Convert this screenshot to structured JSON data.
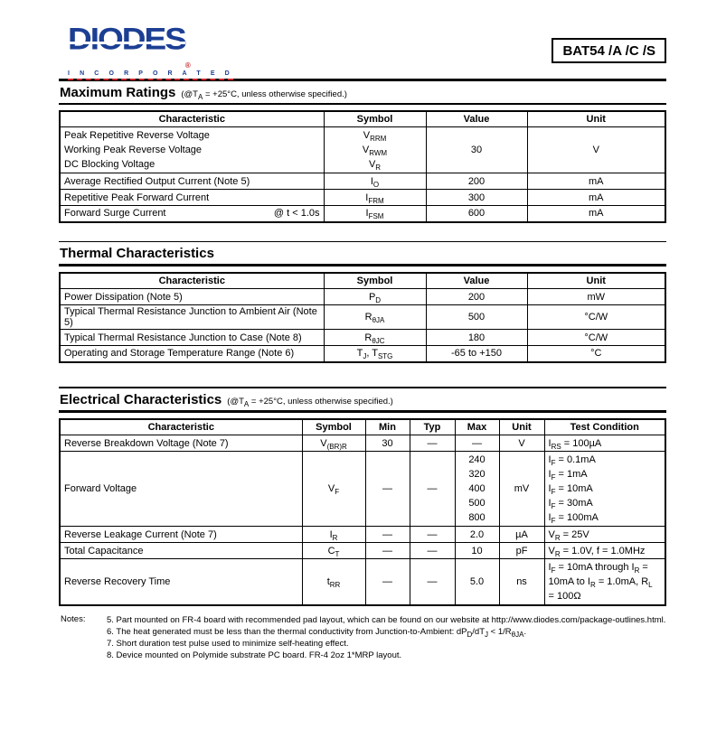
{
  "header": {
    "logo": {
      "brand": "DIODES",
      "reg": "®",
      "tagline": "I N C O R P O R A T E D"
    },
    "part_number": "BAT54 /A /C /S"
  },
  "colors": {
    "logo_blue": "#1c3f94",
    "logo_red": "#c9252b"
  },
  "sections": {
    "maximum_ratings": {
      "title": "Maximum Ratings",
      "subtitle": "(@T~A~ = +25°C, unless otherwise specified.)",
      "headers": [
        "Characteristic",
        "Symbol",
        "Value",
        "Unit"
      ],
      "voltage_group": {
        "characteristics": [
          "Peak Repetitive Reverse Voltage",
          "Working Peak Reverse Voltage",
          "DC Blocking Voltage"
        ],
        "symbols": [
          "V~RRM~",
          "V~RWM~",
          "V~R~"
        ],
        "value": "30",
        "unit": "V"
      },
      "rows": [
        {
          "characteristic": "Average Rectified Output Current (Note 5)",
          "condition": "",
          "symbol": "I~O~",
          "value": "200",
          "unit": "mA"
        },
        {
          "characteristic": "Repetitive Peak Forward Current",
          "condition": "",
          "symbol": "I~FRM~",
          "value": "300",
          "unit": "mA"
        },
        {
          "characteristic": "Forward Surge Current",
          "condition": "@ t < 1.0s",
          "symbol": "I~FSM~",
          "value": "600",
          "unit": "mA"
        }
      ]
    },
    "thermal": {
      "title": "Thermal Characteristics",
      "headers": [
        "Characteristic",
        "Symbol",
        "Value",
        "Unit"
      ],
      "rows": [
        {
          "characteristic": "Power Dissipation (Note 5)",
          "symbol": "P~D~",
          "value": "200",
          "unit": "mW"
        },
        {
          "characteristic": "Typical Thermal Resistance Junction to Ambient Air (Note 5)",
          "symbol": "R~θJA~",
          "value": "500",
          "unit": "°C/W"
        },
        {
          "characteristic": "Typical Thermal Resistance Junction to Case (Note 8)",
          "symbol": "R~θJC~",
          "value": "180",
          "unit": "°C/W"
        },
        {
          "characteristic": "Operating and Storage Temperature Range (Note 6)",
          "symbol": "T~J~, T~STG~",
          "value": "-65 to +150",
          "unit": "°C"
        }
      ]
    },
    "electrical": {
      "title": "Electrical Characteristics",
      "subtitle": "(@T~A~ = +25°C, unless otherwise specified.)",
      "headers": [
        "Characteristic",
        "Symbol",
        "Min",
        "Typ",
        "Max",
        "Unit",
        "Test Condition"
      ],
      "rows": {
        "breakdown": {
          "characteristic": "Reverse Breakdown Voltage (Note 7)",
          "symbol": "V~(BR)R~",
          "min": "30",
          "typ": "—",
          "max": "—",
          "unit": "V",
          "condition": "I~RS~ = 100µA"
        },
        "forward_voltage": {
          "characteristic": "Forward Voltage",
          "symbol": "V~F~",
          "min": "—",
          "typ": "—",
          "max_values": [
            "240",
            "320",
            "400",
            "500",
            "800"
          ],
          "unit": "mV",
          "conditions": [
            "I~F~ = 0.1mA",
            "I~F~ = 1mA",
            "I~F~ = 10mA",
            "I~F~ = 30mA",
            "I~F~ = 100mA"
          ]
        },
        "leakage": {
          "characteristic": "Reverse Leakage Current (Note 7)",
          "symbol": "I~R~",
          "min": "—",
          "typ": "—",
          "max": "2.0",
          "unit": "µA",
          "condition": "V~R~ = 25V"
        },
        "capacitance": {
          "characteristic": "Total Capacitance",
          "symbol": "C~T~",
          "min": "—",
          "typ": "—",
          "max": "10",
          "unit": "pF",
          "condition": "V~R~ = 1.0V, f = 1.0MHz"
        },
        "recovery": {
          "characteristic": "Reverse Recovery Time",
          "symbol": "t~RR~",
          "min": "—",
          "typ": "—",
          "max": "5.0",
          "unit": "ns",
          "condition": "I~F~ = 10mA through I~R~ = 10mA to I~R~ = 1.0mA, R~L~ = 100Ω"
        }
      }
    }
  },
  "notes": {
    "label": "Notes:",
    "items": [
      "5. Part mounted on FR-4 board with recommended pad layout, which can be found on our website at http://www.diodes.com/package-outlines.html.",
      "6. The heat generated must be less than the thermal conductivity from Junction-to-Ambient: dP~D~/dT~J~ < 1/R~θJA~.",
      "7. Short duration test pulse used to minimize self-heating effect.",
      "8. Device mounted on Polymide substrate PC board. FR-4 2oz 1*MRP layout."
    ]
  }
}
